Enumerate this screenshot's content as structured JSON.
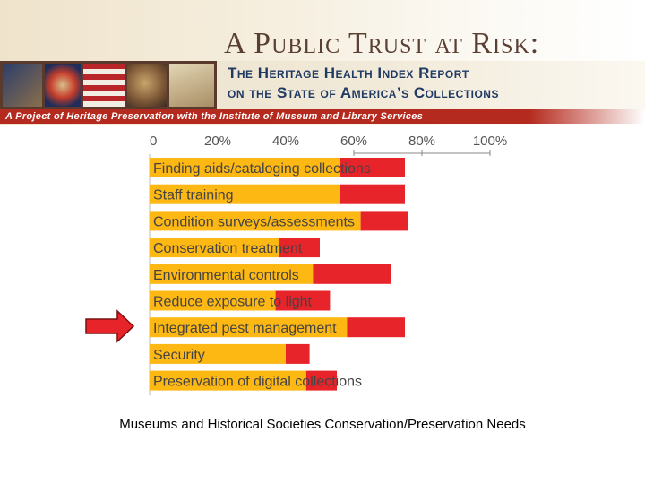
{
  "header": {
    "title": "A Public Trust at Risk:",
    "subtitle_line1": "The Heritage Health Index Report",
    "subtitle_line2": "on the State of America’s Collections",
    "project_line": "A Project of Heritage Preservation with the Institute of Museum and Library Services"
  },
  "colors": {
    "bar_primary": "#fdb813",
    "bar_secondary": "#e8242b",
    "arrow_fill": "#e8242b",
    "arrow_stroke": "#7a1010",
    "axis_text": "#555555"
  },
  "chart_data": {
    "type": "bar",
    "orientation": "horizontal",
    "stacked": true,
    "xlim": [
      0,
      100
    ],
    "tick_labels": [
      "0",
      "20%",
      "40%",
      "60%",
      "80%",
      "100%"
    ],
    "tick_values": [
      0,
      20,
      40,
      60,
      80,
      100
    ],
    "categories": [
      "Finding aids/cataloging collections",
      "Staff training",
      "Condition surveys/assessments",
      "Conservation treatment",
      "Environmental controls",
      "Reduce exposure to light",
      "Integrated pest management",
      "Security",
      "Preservation of digital collections"
    ],
    "series": [
      {
        "values": [
          56,
          56,
          62,
          38,
          48,
          37,
          58,
          40,
          46
        ]
      },
      {
        "values": [
          19,
          19,
          14,
          12,
          23,
          16,
          17,
          7,
          9
        ]
      }
    ],
    "highlighted_category": "Integrated pest management",
    "grid": false,
    "legend": "none"
  },
  "caption": "Museums and Historical Societies Conservation/Preservation Needs"
}
